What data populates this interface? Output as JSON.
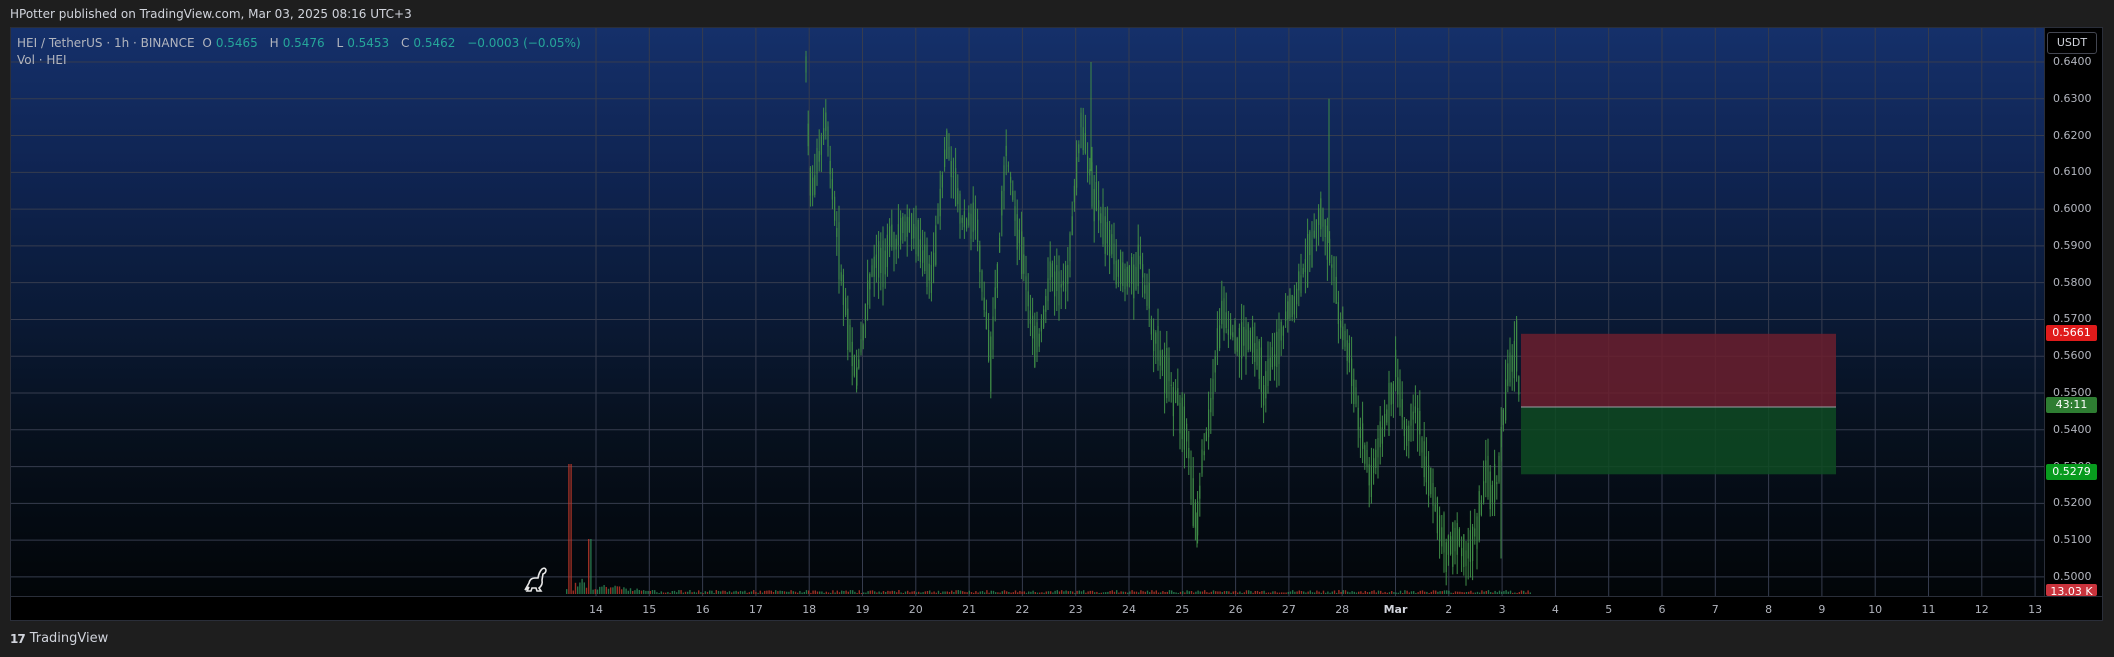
{
  "header": {
    "published": "HPotter published on TradingView.com, Mar 03, 2025 08:16 UTC+3"
  },
  "legend": {
    "symbol": "HEI / TetherUS · 1h · BINANCE",
    "open_label": "O",
    "open": "0.5465",
    "high_label": "H",
    "high": "0.5476",
    "low_label": "L",
    "low": "0.5453",
    "close_label": "C",
    "close": "0.5462",
    "change": "−0.0003 (−0.05%)",
    "volume": "Vol · HEI"
  },
  "price_scale": {
    "currency": "USDT",
    "labels": [
      "0.6400",
      "0.6300",
      "0.6200",
      "0.6100",
      "0.6000",
      "0.5900",
      "0.5800",
      "0.5700",
      "0.5600",
      "0.5500",
      "0.5400",
      "0.5300",
      "0.5200",
      "0.5100",
      "0.5000"
    ],
    "stop_price": "0.5661",
    "countdown": "43:11",
    "target_price": "0.5279",
    "volume_tag": "13.03 K"
  },
  "time_scale": {
    "labels": [
      "14",
      "15",
      "16",
      "17",
      "18",
      "19",
      "20",
      "21",
      "22",
      "23",
      "24",
      "25",
      "26",
      "27",
      "28",
      "Mar",
      "2",
      "3",
      "4",
      "5",
      "6",
      "7",
      "8",
      "9",
      "10",
      "11",
      "12",
      "13"
    ]
  },
  "position_tool": {
    "entry": 0.5462,
    "stop": 0.5661,
    "target": 0.5279
  },
  "colors": {
    "up": "#26a69a",
    "candle": "#3f8c46",
    "down": "#ef5350",
    "stop_zone": "#6b1e2e",
    "target_zone": "#0e4a22"
  },
  "footer": {
    "brand": "TradingView",
    "brand_icon": "tv-logo-icon"
  }
}
